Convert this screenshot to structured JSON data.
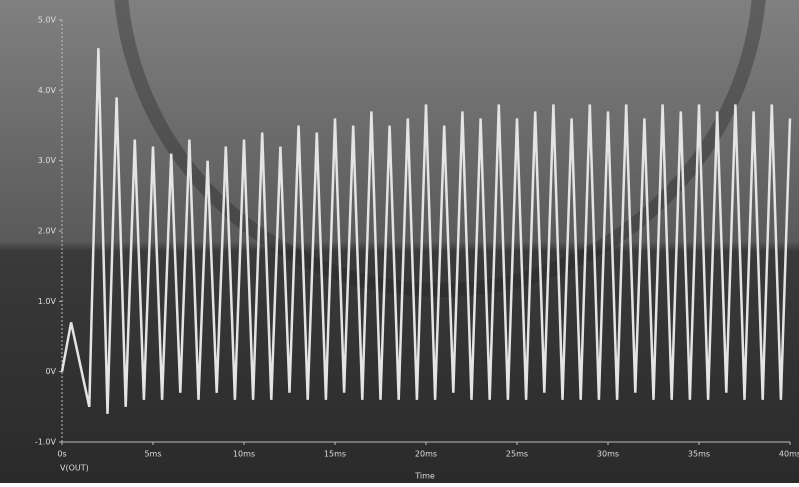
{
  "chart_data": {
    "type": "line",
    "x_label": "Time",
    "legend_label": "V(OUT)",
    "x": [
      0,
      0.5,
      1,
      1.5,
      2,
      2.5,
      3,
      3.5,
      4,
      4.5,
      5,
      5.5,
      6,
      6.5,
      7,
      7.5,
      8,
      8.5,
      9,
      9.5,
      10,
      10.5,
      11,
      11.5,
      12,
      12.5,
      13,
      13.5,
      14,
      14.5,
      15,
      15.5,
      16,
      16.5,
      17,
      17.5,
      18,
      18.5,
      19,
      19.5,
      20,
      20.5,
      21,
      21.5,
      22,
      22.5,
      23,
      23.5,
      24,
      24.5,
      25,
      25.5,
      26,
      26.5,
      27,
      27.5,
      28,
      28.5,
      29,
      29.5,
      30,
      30.5,
      31,
      31.5,
      32,
      32.5,
      33,
      33.5,
      34,
      34.5,
      35,
      35.5,
      36,
      36.5,
      37,
      37.5,
      38,
      38.5,
      39,
      39.5,
      40
    ],
    "series": [
      {
        "name": "V(OUT)",
        "color": "#e4e4e4",
        "values": [
          0,
          0.7,
          0.1,
          -0.5,
          4.6,
          -0.6,
          3.9,
          -0.5,
          3.3,
          -0.4,
          3.2,
          -0.4,
          3.1,
          -0.3,
          3.3,
          -0.4,
          3.0,
          -0.3,
          3.2,
          -0.4,
          3.3,
          -0.4,
          3.4,
          -0.4,
          3.2,
          -0.3,
          3.5,
          -0.4,
          3.4,
          -0.4,
          3.6,
          -0.3,
          3.5,
          -0.4,
          3.7,
          -0.4,
          3.5,
          -0.4,
          3.6,
          -0.4,
          3.8,
          -0.4,
          3.5,
          -0.3,
          3.7,
          -0.4,
          3.6,
          -0.4,
          3.8,
          -0.4,
          3.6,
          -0.4,
          3.7,
          -0.3,
          3.8,
          -0.4,
          3.6,
          -0.4,
          3.8,
          -0.4,
          3.7,
          -0.4,
          3.8,
          -0.3,
          3.6,
          -0.4,
          3.8,
          -0.4,
          3.7,
          -0.4,
          3.8,
          -0.4,
          3.7,
          -0.3,
          3.8,
          -0.4,
          3.7,
          -0.4,
          3.8,
          -0.4,
          3.6
        ]
      }
    ],
    "xlim": [
      0,
      40
    ],
    "xticks": [
      {
        "value": 0,
        "label": "0s"
      },
      {
        "value": 5,
        "label": "5ms"
      },
      {
        "value": 10,
        "label": "10ms"
      },
      {
        "value": 15,
        "label": "15ms"
      },
      {
        "value": 20,
        "label": "20ms"
      },
      {
        "value": 25,
        "label": "25ms"
      },
      {
        "value": 30,
        "label": "30ms"
      },
      {
        "value": 35,
        "label": "35ms"
      },
      {
        "value": 40,
        "label": "40ms"
      }
    ],
    "ylim": [
      -1,
      5
    ],
    "yticks": [
      {
        "value": -1,
        "label": "-1.0V"
      },
      {
        "value": 0,
        "label": "0V"
      },
      {
        "value": 1,
        "label": "1.0V"
      },
      {
        "value": 2,
        "label": "2.0V"
      },
      {
        "value": 3,
        "label": "3.0V"
      },
      {
        "value": 4,
        "label": "4.0V"
      },
      {
        "value": 5,
        "label": "5.0V"
      }
    ]
  }
}
